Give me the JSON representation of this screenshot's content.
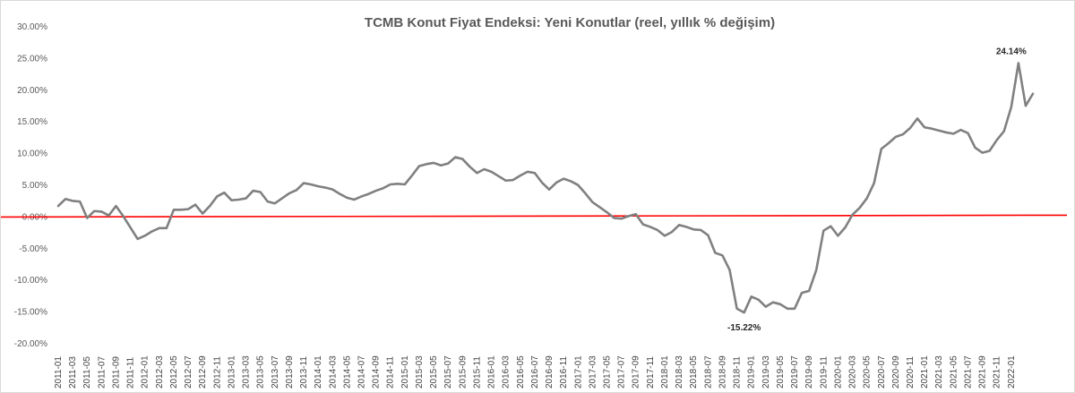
{
  "chart_data": {
    "type": "line",
    "title": "TCMB Konut Fiyat Endeksi: Yeni Konutlar (reel, yıllık % değişim)",
    "xlabel": "",
    "ylabel": "",
    "ylim": [
      -20,
      30
    ],
    "y_ticks": [
      30,
      25,
      20,
      15,
      10,
      5,
      0,
      -5,
      -10,
      -15,
      -20
    ],
    "y_tick_labels": [
      "30.00%",
      "25.00%",
      "20.00%",
      "15.00%",
      "10.00%",
      "5.00%",
      "0.00%",
      "-5.00%",
      "-10.00%",
      "-15.00%",
      "-20.00%"
    ],
    "x_tick_labels": [
      "2011-01",
      "2011-03",
      "2011-05",
      "2011-07",
      "2011-09",
      "2011-11",
      "2012-01",
      "2012-03",
      "2012-05",
      "2012-07",
      "2012-09",
      "2012-11",
      "2013-01",
      "2013-03",
      "2013-05",
      "2013-07",
      "2013-09",
      "2013-11",
      "2014-01",
      "2014-03",
      "2014-05",
      "2014-07",
      "2014-09",
      "2014-11",
      "2015-01",
      "2015-03",
      "2015-05",
      "2015-07",
      "2015-09",
      "2015-11",
      "2016-01",
      "2016-03",
      "2016-05",
      "2016-07",
      "2016-09",
      "2016-11",
      "2017-01",
      "2017-03",
      "2017-05",
      "2017-07",
      "2017-09",
      "2017-11",
      "2018-01",
      "2018-03",
      "2018-05",
      "2018-07",
      "2018-09",
      "2018-11",
      "2019-01",
      "2019-03",
      "2019-05",
      "2019-07",
      "2019-09",
      "2019-11",
      "2020-01",
      "2020-03",
      "2020-05",
      "2020-07",
      "2020-09",
      "2020-11",
      "2021-01",
      "2021-03",
      "2021-05",
      "2021-07",
      "2021-09",
      "2021-11",
      "2022-01"
    ],
    "grid": false,
    "legend": "none",
    "colors": {
      "series": "#808080",
      "reference_line": "#ff0000",
      "title": "#595959",
      "axis_text": "#595959"
    },
    "reference_line_y": 0,
    "series": [
      {
        "values": [
          1.6,
          2.7,
          2.4,
          2.3,
          -0.3,
          0.8,
          0.7,
          0.1,
          1.6,
          0.0,
          -1.8,
          -3.6,
          -3.1,
          -2.4,
          -1.9,
          -1.9,
          1.0,
          1.0,
          1.1,
          1.8,
          0.4,
          1.6,
          3.1,
          3.7,
          2.5,
          2.6,
          2.8,
          4.0,
          3.8,
          2.3,
          2.0,
          2.8,
          3.6,
          4.1,
          5.2,
          5.0,
          4.7,
          4.5,
          4.2,
          3.5,
          2.9,
          2.6,
          3.1,
          3.5,
          4.0,
          4.4,
          5.0,
          5.1,
          5.0,
          6.4,
          7.9,
          8.2,
          8.4,
          8.0,
          8.3,
          9.3,
          9.0,
          7.8,
          6.8,
          7.4,
          7.0,
          6.3,
          5.6,
          5.7,
          6.4,
          7.0,
          6.8,
          5.3,
          4.2,
          5.3,
          5.9,
          5.5,
          4.9,
          3.6,
          2.2,
          1.4,
          0.6,
          -0.3,
          -0.4,
          0.0,
          0.3,
          -1.3,
          -1.7,
          -2.2,
          -3.1,
          -2.5,
          -1.4,
          -1.7,
          -2.1,
          -2.2,
          -3.0,
          -5.8,
          -6.2,
          -8.5,
          -14.6,
          -15.22,
          -12.7,
          -13.2,
          -14.3,
          -13.6,
          -13.9,
          -14.6,
          -14.6,
          -12.1,
          -11.8,
          -8.5,
          -2.3,
          -1.6,
          -3.1,
          -1.8,
          0.2,
          1.3,
          2.8,
          5.2,
          10.6,
          11.5,
          12.5,
          12.9,
          13.9,
          15.4,
          14.0,
          13.8,
          13.5,
          13.2,
          13.0,
          13.6,
          13.1,
          10.8,
          10.0,
          10.3,
          12.0,
          13.4,
          17.2,
          24.14,
          17.4,
          19.3
        ]
      }
    ],
    "annotations": [
      {
        "label": "24.14%",
        "series_index": 132,
        "value": 24.14
      },
      {
        "label": "-15.22%",
        "series_index": 95,
        "value": -15.22
      }
    ]
  }
}
